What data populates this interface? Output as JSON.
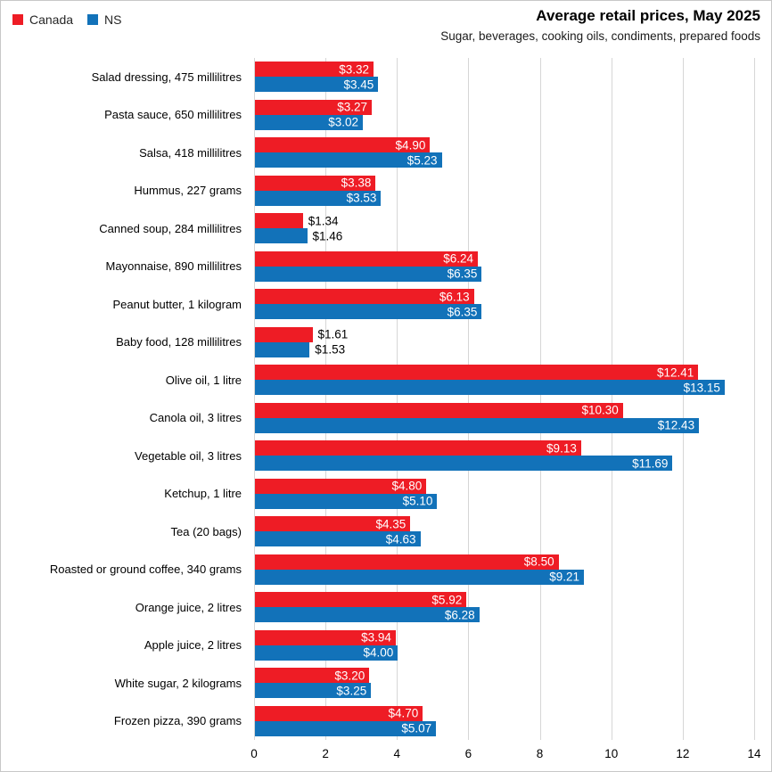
{
  "header": {
    "title": "Average retail prices, May 2025",
    "subtitle": "Sugar, beverages, cooking oils, condiments, prepared foods"
  },
  "legend": [
    {
      "label": "Canada",
      "color": "#ee1c25"
    },
    {
      "label": "NS",
      "color": "#1272b9"
    }
  ],
  "colors": {
    "canada_bar": "#ee1c25",
    "ns_bar": "#1272b9",
    "gridline": "#d6d6d6",
    "inside_label": "#ffffff",
    "outside_label": "#000000"
  },
  "chart_data": {
    "type": "bar",
    "orientation": "horizontal",
    "title": "Average retail prices, May 2025",
    "subtitle": "Sugar, beverages, cooking oils, condiments, prepared foods",
    "legend_position": "top-left",
    "grid": true,
    "xlim": [
      0,
      14
    ],
    "x_ticks": [
      "0",
      "2",
      "4",
      "6",
      "8",
      "10",
      "12",
      "14"
    ],
    "categories": [
      "Salad dressing, 475 millilitres",
      "Pasta sauce, 650 millilitres",
      "Salsa, 418 millilitres",
      "Hummus, 227 grams",
      "Canned soup, 284 millilitres",
      "Mayonnaise, 890 millilitres",
      "Peanut butter, 1 kilogram",
      "Baby food, 128 millilitres",
      "Olive oil, 1 litre",
      "Canola oil, 3 litres",
      "Vegetable oil, 3 litres",
      "Ketchup, 1 litre",
      "Tea (20 bags)",
      "Roasted or ground coffee, 340 grams",
      "Orange juice, 2 litres",
      "Apple juice, 2 litres",
      "White sugar, 2 kilograms",
      "Frozen pizza, 390 grams"
    ],
    "series": [
      {
        "name": "Canada",
        "color": "#ee1c25",
        "values": [
          3.32,
          3.27,
          4.9,
          3.38,
          1.34,
          6.24,
          6.13,
          1.61,
          12.41,
          10.3,
          9.13,
          4.8,
          4.35,
          8.5,
          5.92,
          3.94,
          3.2,
          4.7
        ],
        "labels": [
          "$3.32",
          "$3.27",
          "$4.90",
          "$3.38",
          "$1.34",
          "$6.24",
          "$6.13",
          "$1.61",
          "$12.41",
          "$10.30",
          "$9.13",
          "$4.80",
          "$4.35",
          "$8.50",
          "$5.92",
          "$3.94",
          "$3.20",
          "$4.70"
        ]
      },
      {
        "name": "NS",
        "color": "#1272b9",
        "values": [
          3.45,
          3.02,
          5.23,
          3.53,
          1.46,
          6.35,
          6.35,
          1.53,
          13.15,
          12.43,
          11.69,
          5.1,
          4.63,
          9.21,
          6.28,
          4.0,
          3.25,
          5.07
        ],
        "labels": [
          "$3.45",
          "$3.02",
          "$5.23",
          "$3.53",
          "$1.46",
          "$6.35",
          "$6.35",
          "$1.53",
          "$13.15",
          "$12.43",
          "$11.69",
          "$5.10",
          "$4.63",
          "$9.21",
          "$6.28",
          "$4.00",
          "$3.25",
          "$5.07"
        ]
      }
    ]
  }
}
